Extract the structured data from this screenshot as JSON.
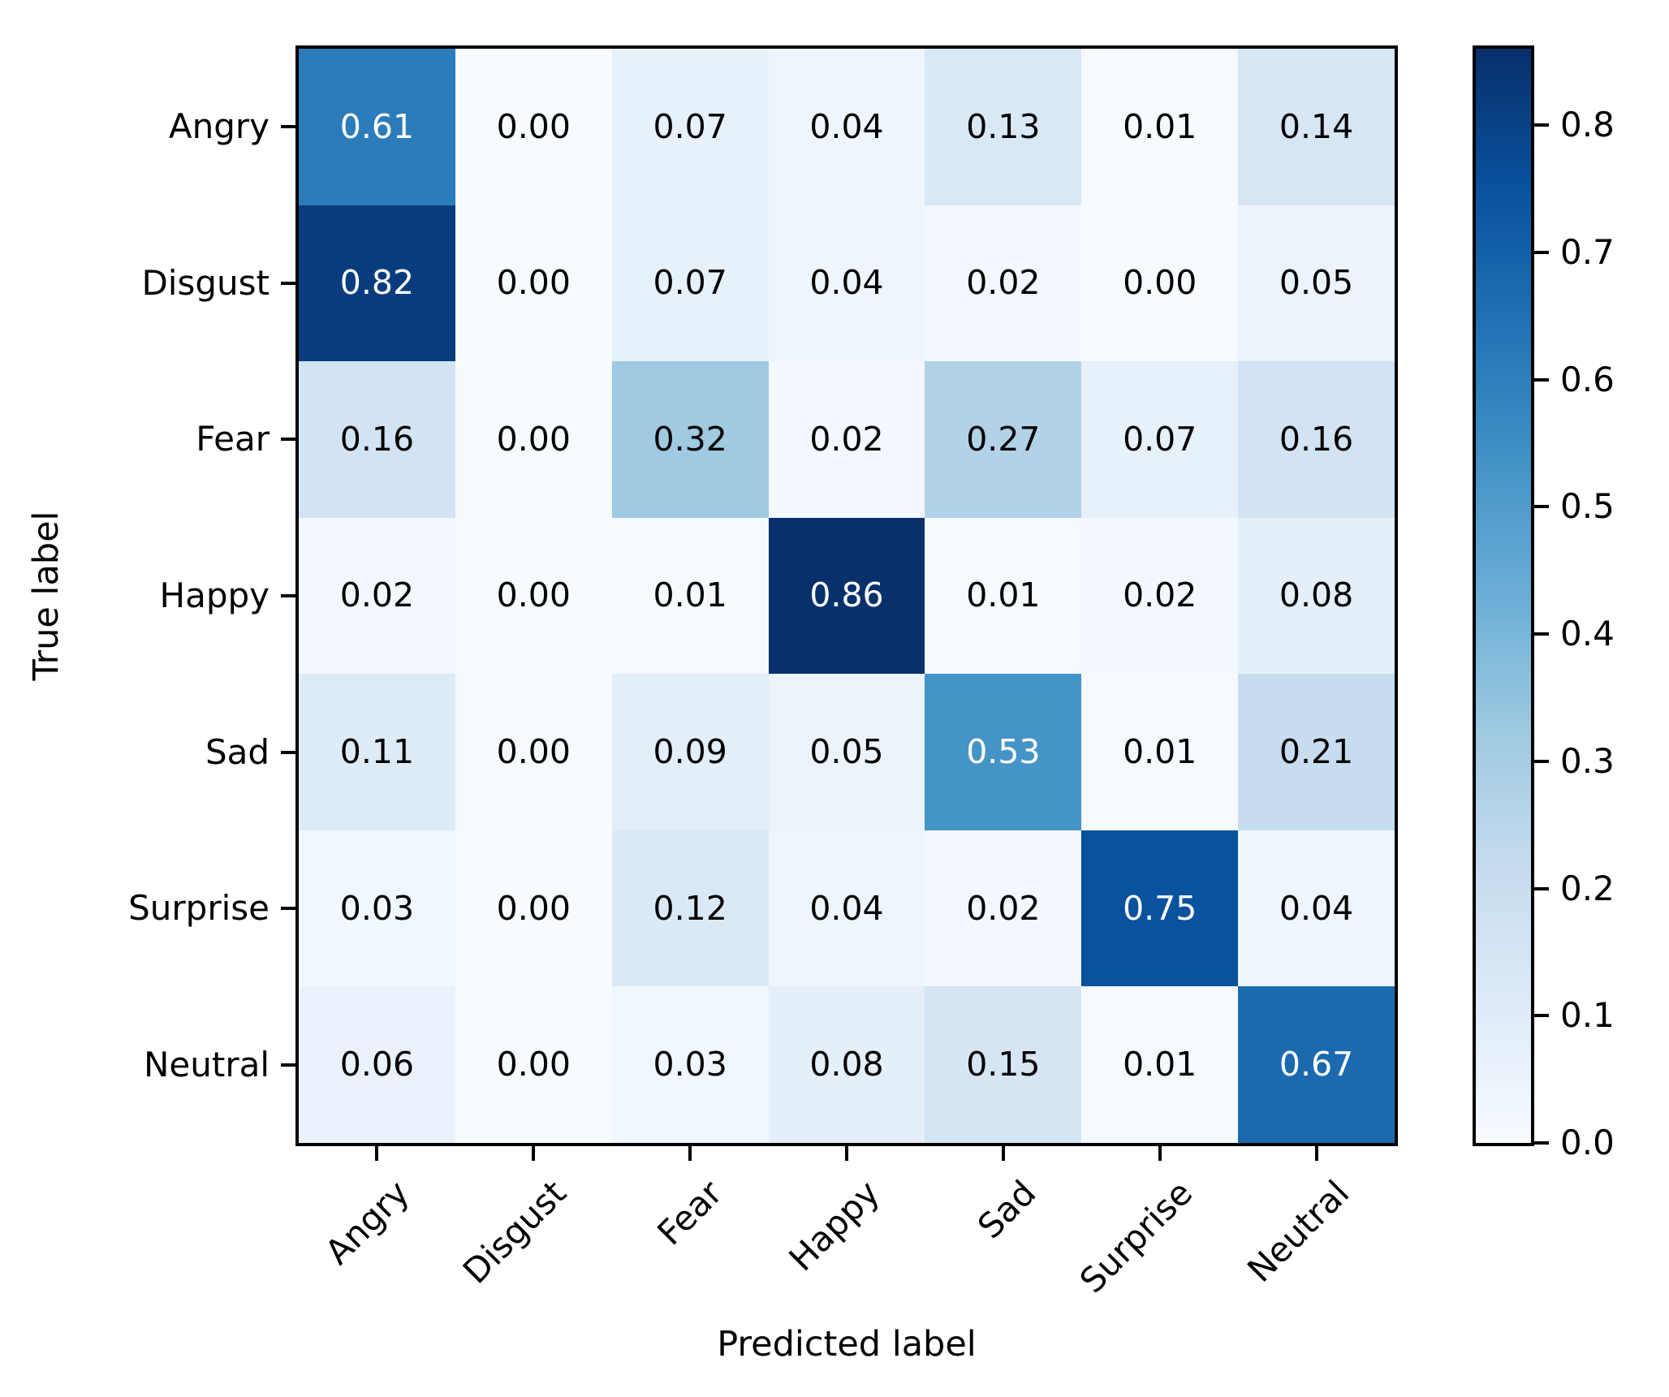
{
  "figure": {
    "background": "#ffffff",
    "axis_color": "#000000"
  },
  "chart_data": {
    "type": "heatmap",
    "title": "",
    "xlabel": "Predicted label",
    "ylabel": "True label",
    "x_tick_labels": [
      "Angry",
      "Disgust",
      "Fear",
      "Happy",
      "Sad",
      "Surprise",
      "Neutral"
    ],
    "y_tick_labels": [
      "Angry",
      "Disgust",
      "Fear",
      "Happy",
      "Sad",
      "Surprise",
      "Neutral"
    ],
    "matrix": [
      [
        0.61,
        0.0,
        0.07,
        0.04,
        0.13,
        0.01,
        0.14
      ],
      [
        0.82,
        0.0,
        0.07,
        0.04,
        0.02,
        0.0,
        0.05
      ],
      [
        0.16,
        0.0,
        0.32,
        0.02,
        0.27,
        0.07,
        0.16
      ],
      [
        0.02,
        0.0,
        0.01,
        0.86,
        0.01,
        0.02,
        0.08
      ],
      [
        0.11,
        0.0,
        0.09,
        0.05,
        0.53,
        0.01,
        0.21
      ],
      [
        0.03,
        0.0,
        0.12,
        0.04,
        0.02,
        0.75,
        0.04
      ],
      [
        0.06,
        0.0,
        0.03,
        0.08,
        0.15,
        0.01,
        0.67
      ]
    ],
    "value_decimals": 2,
    "vmin": 0.0,
    "vmax": 0.86,
    "colormap": "Blues",
    "colormap_stops": [
      "#f7fbff",
      "#deebf7",
      "#c6dbef",
      "#9ecae1",
      "#6baed6",
      "#4292c6",
      "#2171b5",
      "#08519c",
      "#08306b"
    ],
    "colorbar_ticks": [
      0.0,
      0.1,
      0.2,
      0.3,
      0.4,
      0.5,
      0.6,
      0.7,
      0.8
    ],
    "colorbar_tick_decimals": 1,
    "colorbar_position": "right",
    "cell_text_colors": {
      "light": "#ffffff",
      "dark": "#000000"
    },
    "cell_text_color_threshold": 0.43,
    "grid": false
  }
}
